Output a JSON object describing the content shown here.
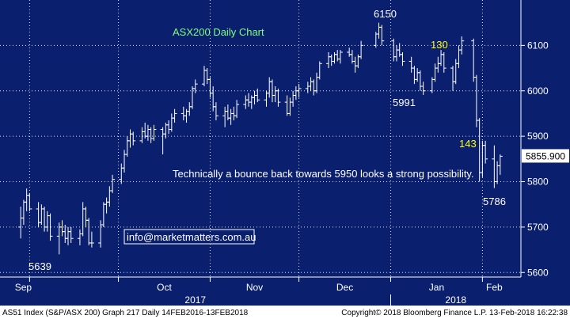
{
  "chart_data": {
    "type": "ohlc",
    "title": "ASX200 Daily Chart",
    "ylim": [
      5590,
      6200
    ],
    "y_ticks": [
      5600,
      5700,
      5800,
      5900,
      6000,
      6100
    ],
    "last_price": 5855.9,
    "last_price_label": "5855.900",
    "months": [
      "Sep",
      "Oct",
      "Nov",
      "Dec",
      "Jan",
      "Feb"
    ],
    "years": [
      "2017",
      "2018"
    ],
    "annotations": [
      {
        "id": "label-6150",
        "text": "6150",
        "color": "#ffffff"
      },
      {
        "id": "label-130",
        "text": "130",
        "color": "#ffff00"
      },
      {
        "id": "label-5991",
        "text": "5991",
        "color": "#ffffff"
      },
      {
        "id": "label-143",
        "text": "143",
        "color": "#ffff00"
      },
      {
        "id": "label-5786",
        "text": "5786",
        "color": "#ffffff"
      },
      {
        "id": "label-5639",
        "text": "5639",
        "color": "#ffffff"
      },
      {
        "id": "comment",
        "text": "Technically a bounce back towards 5950 looks a strong possibility.",
        "color": "#ffffff"
      },
      {
        "id": "email",
        "text": "info@marketmatters.com.au",
        "color": "#ffffff"
      }
    ],
    "bars": [
      {
        "date": "2017-08-29",
        "o": 5700,
        "h": 5745,
        "l": 5675,
        "c": 5720
      },
      {
        "date": "2017-08-30",
        "o": 5720,
        "h": 5760,
        "l": 5705,
        "c": 5755
      },
      {
        "date": "2017-08-31",
        "o": 5755,
        "h": 5785,
        "l": 5735,
        "c": 5770
      },
      {
        "date": "2017-09-01",
        "o": 5770,
        "h": 5775,
        "l": 5735,
        "c": 5740
      },
      {
        "date": "2017-09-04",
        "o": 5740,
        "h": 5755,
        "l": 5700,
        "c": 5710
      },
      {
        "date": "2017-09-05",
        "o": 5710,
        "h": 5750,
        "l": 5705,
        "c": 5740
      },
      {
        "date": "2017-09-06",
        "o": 5740,
        "h": 5745,
        "l": 5690,
        "c": 5700
      },
      {
        "date": "2017-09-07",
        "o": 5700,
        "h": 5735,
        "l": 5690,
        "c": 5725
      },
      {
        "date": "2017-09-08",
        "o": 5725,
        "h": 5730,
        "l": 5670,
        "c": 5680
      },
      {
        "date": "2017-09-11",
        "o": 5680,
        "h": 5710,
        "l": 5640,
        "c": 5700
      },
      {
        "date": "2017-09-12",
        "o": 5700,
        "h": 5715,
        "l": 5680,
        "c": 5690
      },
      {
        "date": "2017-09-13",
        "o": 5690,
        "h": 5705,
        "l": 5665,
        "c": 5675
      },
      {
        "date": "2017-09-14",
        "o": 5675,
        "h": 5700,
        "l": 5660,
        "c": 5690
      },
      {
        "date": "2017-09-15",
        "o": 5690,
        "h": 5700,
        "l": 5665,
        "c": 5675
      },
      {
        "date": "2017-09-18",
        "o": 5675,
        "h": 5695,
        "l": 5660,
        "c": 5685
      },
      {
        "date": "2017-09-19",
        "o": 5685,
        "h": 5755,
        "l": 5680,
        "c": 5740
      },
      {
        "date": "2017-09-20",
        "o": 5740,
        "h": 5745,
        "l": 5700,
        "c": 5715
      },
      {
        "date": "2017-09-21",
        "o": 5715,
        "h": 5720,
        "l": 5660,
        "c": 5665
      },
      {
        "date": "2017-09-22",
        "o": 5665,
        "h": 5690,
        "l": 5655,
        "c": 5665
      },
      {
        "date": "2017-09-25",
        "o": 5665,
        "h": 5715,
        "l": 5655,
        "c": 5705
      },
      {
        "date": "2017-09-26",
        "o": 5705,
        "h": 5755,
        "l": 5700,
        "c": 5750
      },
      {
        "date": "2017-09-27",
        "o": 5750,
        "h": 5765,
        "l": 5730,
        "c": 5755
      },
      {
        "date": "2017-09-28",
        "o": 5755,
        "h": 5790,
        "l": 5745,
        "c": 5780
      },
      {
        "date": "2017-09-29",
        "o": 5780,
        "h": 5815,
        "l": 5775,
        "c": 5805
      },
      {
        "date": "2017-10-02",
        "o": 5805,
        "h": 5840,
        "l": 5795,
        "c": 5830
      },
      {
        "date": "2017-10-03",
        "o": 5830,
        "h": 5870,
        "l": 5820,
        "c": 5860
      },
      {
        "date": "2017-10-04",
        "o": 5860,
        "h": 5900,
        "l": 5855,
        "c": 5890
      },
      {
        "date": "2017-10-05",
        "o": 5890,
        "h": 5915,
        "l": 5875,
        "c": 5905
      },
      {
        "date": "2017-10-06",
        "o": 5905,
        "h": 5910,
        "l": 5880,
        "c": 5890
      },
      {
        "date": "2017-10-09",
        "o": 5890,
        "h": 5920,
        "l": 5885,
        "c": 5910
      },
      {
        "date": "2017-10-10",
        "o": 5910,
        "h": 5930,
        "l": 5895,
        "c": 5900
      },
      {
        "date": "2017-10-11",
        "o": 5900,
        "h": 5925,
        "l": 5890,
        "c": 5915
      },
      {
        "date": "2017-10-12",
        "o": 5915,
        "h": 5920,
        "l": 5885,
        "c": 5895
      },
      {
        "date": "2017-10-13",
        "o": 5895,
        "h": 5925,
        "l": 5890,
        "c": 5915
      },
      {
        "date": "2017-10-16",
        "o": 5915,
        "h": 5920,
        "l": 5860,
        "c": 5905
      },
      {
        "date": "2017-10-17",
        "o": 5905,
        "h": 5930,
        "l": 5895,
        "c": 5925
      },
      {
        "date": "2017-10-18",
        "o": 5925,
        "h": 5935,
        "l": 5905,
        "c": 5915
      },
      {
        "date": "2017-10-19",
        "o": 5915,
        "h": 5950,
        "l": 5910,
        "c": 5940
      },
      {
        "date": "2017-10-20",
        "o": 5940,
        "h": 5960,
        "l": 5930,
        "c": 5950
      },
      {
        "date": "2017-10-23",
        "o": 5950,
        "h": 5965,
        "l": 5935,
        "c": 5945
      },
      {
        "date": "2017-10-24",
        "o": 5945,
        "h": 5960,
        "l": 5930,
        "c": 5955
      },
      {
        "date": "2017-10-25",
        "o": 5955,
        "h": 5975,
        "l": 5945,
        "c": 5965
      },
      {
        "date": "2017-10-26",
        "o": 5965,
        "h": 6010,
        "l": 5960,
        "c": 6005
      },
      {
        "date": "2017-10-27",
        "o": 6005,
        "h": 6025,
        "l": 5995,
        "c": 6015
      },
      {
        "date": "2017-10-30",
        "o": 6015,
        "h": 6055,
        "l": 6010,
        "c": 6045
      },
      {
        "date": "2017-10-31",
        "o": 6045,
        "h": 6050,
        "l": 6015,
        "c": 6025
      },
      {
        "date": "2017-11-01",
        "o": 6025,
        "h": 6030,
        "l": 5985,
        "c": 5995
      },
      {
        "date": "2017-11-02",
        "o": 5995,
        "h": 6010,
        "l": 5955,
        "c": 5965
      },
      {
        "date": "2017-11-03",
        "o": 5965,
        "h": 5975,
        "l": 5935,
        "c": 5945
      },
      {
        "date": "2017-11-06",
        "o": 5945,
        "h": 5965,
        "l": 5920,
        "c": 5955
      },
      {
        "date": "2017-11-07",
        "o": 5955,
        "h": 5970,
        "l": 5935,
        "c": 5940
      },
      {
        "date": "2017-11-08",
        "o": 5940,
        "h": 5960,
        "l": 5925,
        "c": 5950
      },
      {
        "date": "2017-11-09",
        "o": 5950,
        "h": 5965,
        "l": 5935,
        "c": 5945
      },
      {
        "date": "2017-11-10",
        "o": 5945,
        "h": 5980,
        "l": 5940,
        "c": 5970
      },
      {
        "date": "2017-11-13",
        "o": 5970,
        "h": 5990,
        "l": 5960,
        "c": 5980
      },
      {
        "date": "2017-11-14",
        "o": 5980,
        "h": 5995,
        "l": 5965,
        "c": 5975
      },
      {
        "date": "2017-11-15",
        "o": 5975,
        "h": 5990,
        "l": 5960,
        "c": 5985
      },
      {
        "date": "2017-11-16",
        "o": 5985,
        "h": 6000,
        "l": 5970,
        "c": 5990
      },
      {
        "date": "2017-11-17",
        "o": 5990,
        "h": 6005,
        "l": 5975,
        "c": 5980
      },
      {
        "date": "2017-11-20",
        "o": 5980,
        "h": 6000,
        "l": 5965,
        "c": 5995
      },
      {
        "date": "2017-11-21",
        "o": 5995,
        "h": 6030,
        "l": 5985,
        "c": 6020
      },
      {
        "date": "2017-11-22",
        "o": 6020,
        "h": 6025,
        "l": 5975,
        "c": 5990
      },
      {
        "date": "2017-11-23",
        "o": 5990,
        "h": 6010,
        "l": 5975,
        "c": 6000
      },
      {
        "date": "2017-11-24",
        "o": 6000,
        "h": 6005,
        "l": 5965,
        "c": 5975
      },
      {
        "date": "2017-11-27",
        "o": 5975,
        "h": 5990,
        "l": 5945,
        "c": 5950
      },
      {
        "date": "2017-11-28",
        "o": 5950,
        "h": 5985,
        "l": 5945,
        "c": 5975
      },
      {
        "date": "2017-11-29",
        "o": 5975,
        "h": 6000,
        "l": 5965,
        "c": 5990
      },
      {
        "date": "2017-11-30",
        "o": 5990,
        "h": 6010,
        "l": 5980,
        "c": 6000
      },
      {
        "date": "2017-12-01",
        "o": 6000,
        "h": 6015,
        "l": 5985,
        "c": 6005
      },
      {
        "date": "2017-12-04",
        "o": 6005,
        "h": 6020,
        "l": 5995,
        "c": 6010
      },
      {
        "date": "2017-12-05",
        "o": 6010,
        "h": 6030,
        "l": 6000,
        "c": 6020
      },
      {
        "date": "2017-12-06",
        "o": 6020,
        "h": 6025,
        "l": 5990,
        "c": 6000
      },
      {
        "date": "2017-12-07",
        "o": 6000,
        "h": 6040,
        "l": 5995,
        "c": 6030
      },
      {
        "date": "2017-12-08",
        "o": 6030,
        "h": 6065,
        "l": 6025,
        "c": 6060
      },
      {
        "date": "2017-12-11",
        "o": 6060,
        "h": 6085,
        "l": 6050,
        "c": 6075
      },
      {
        "date": "2017-12-12",
        "o": 6075,
        "h": 6080,
        "l": 6055,
        "c": 6065
      },
      {
        "date": "2017-12-13",
        "o": 6065,
        "h": 6085,
        "l": 6060,
        "c": 6080
      },
      {
        "date": "2017-12-14",
        "o": 6080,
        "h": 6090,
        "l": 6065,
        "c": 6070
      },
      {
        "date": "2017-12-15",
        "o": 6070,
        "h": 6090,
        "l": 6060,
        "c": 6085
      },
      {
        "date": "2017-12-18",
        "o": 6085,
        "h": 6095,
        "l": 6075,
        "c": 6080
      },
      {
        "date": "2017-12-19",
        "o": 6080,
        "h": 6090,
        "l": 6060,
        "c": 6065
      },
      {
        "date": "2017-12-20",
        "o": 6065,
        "h": 6075,
        "l": 6040,
        "c": 6055
      },
      {
        "date": "2017-12-21",
        "o": 6055,
        "h": 6080,
        "l": 6050,
        "c": 6075
      },
      {
        "date": "2017-12-22",
        "o": 6075,
        "h": 6110,
        "l": 6070,
        "c": 6100
      },
      {
        "date": "2017-12-27",
        "o": 6100,
        "h": 6130,
        "l": 6095,
        "c": 6125
      },
      {
        "date": "2017-12-28",
        "o": 6125,
        "h": 6150,
        "l": 6115,
        "c": 6140
      },
      {
        "date": "2017-12-29",
        "o": 6140,
        "h": 6145,
        "l": 6100,
        "c": 6110
      },
      {
        "date": "2018-01-02",
        "o": 6110,
        "h": 6115,
        "l": 6065,
        "c": 6075
      },
      {
        "date": "2018-01-03",
        "o": 6075,
        "h": 6100,
        "l": 6065,
        "c": 6090
      },
      {
        "date": "2018-01-04",
        "o": 6090,
        "h": 6105,
        "l": 6075,
        "c": 6080
      },
      {
        "date": "2018-01-05",
        "o": 6080,
        "h": 6085,
        "l": 6055,
        "c": 6065
      },
      {
        "date": "2018-01-08",
        "o": 6065,
        "h": 6075,
        "l": 6040,
        "c": 6050
      },
      {
        "date": "2018-01-09",
        "o": 6050,
        "h": 6055,
        "l": 6015,
        "c": 6025
      },
      {
        "date": "2018-01-10",
        "o": 6025,
        "h": 6050,
        "l": 6020,
        "c": 6040
      },
      {
        "date": "2018-01-11",
        "o": 6040,
        "h": 6045,
        "l": 6000,
        "c": 6010
      },
      {
        "date": "2018-01-12",
        "o": 6010,
        "h": 6020,
        "l": 5991,
        "c": 6000
      },
      {
        "date": "2018-01-15",
        "o": 6000,
        "h": 6030,
        "l": 5995,
        "c": 6025
      },
      {
        "date": "2018-01-16",
        "o": 6025,
        "h": 6060,
        "l": 6020,
        "c": 6050
      },
      {
        "date": "2018-01-17",
        "o": 6050,
        "h": 6075,
        "l": 6040,
        "c": 6060
      },
      {
        "date": "2018-01-18",
        "o": 6060,
        "h": 6090,
        "l": 6055,
        "c": 6080
      },
      {
        "date": "2018-01-19",
        "o": 6080,
        "h": 6085,
        "l": 6040,
        "c": 6050
      },
      {
        "date": "2018-01-22",
        "o": 6050,
        "h": 6055,
        "l": 6000,
        "c": 6020
      },
      {
        "date": "2018-01-23",
        "o": 6020,
        "h": 6070,
        "l": 6015,
        "c": 6060
      },
      {
        "date": "2018-01-24",
        "o": 6060,
        "h": 6100,
        "l": 6050,
        "c": 6090
      },
      {
        "date": "2018-01-25",
        "o": 6090,
        "h": 6120,
        "l": 6080,
        "c": 6110
      },
      {
        "date": "2018-01-29",
        "o": 6110,
        "h": 6115,
        "l": 6020,
        "c": 6030
      },
      {
        "date": "2018-01-30",
        "o": 6030,
        "h": 6035,
        "l": 5920,
        "c": 5935
      },
      {
        "date": "2018-01-31",
        "o": 5935,
        "h": 5940,
        "l": 5800,
        "c": 5820
      },
      {
        "date": "2018-02-01",
        "o": 5820,
        "h": 5890,
        "l": 5810,
        "c": 5880
      },
      {
        "date": "2018-02-02",
        "o": 5880,
        "h": 5890,
        "l": 5840,
        "c": 5850
      },
      {
        "date": "2018-02-05",
        "o": 5850,
        "h": 5880,
        "l": 5786,
        "c": 5800
      },
      {
        "date": "2018-02-06",
        "o": 5800,
        "h": 5845,
        "l": 5795,
        "c": 5835
      },
      {
        "date": "2018-02-07",
        "o": 5835,
        "h": 5860,
        "l": 5815,
        "c": 5855.9
      }
    ]
  },
  "x_axis": {
    "months": [
      "Sep",
      "Oct",
      "Nov",
      "Dec",
      "Jan",
      "Feb"
    ],
    "years": [
      "2017",
      "2018"
    ]
  },
  "footer": {
    "left": "AS51 Index (S&P/ASX 200) Graph 217  Daily 14FEB2016-13FEB2018",
    "right": "Copyright© 2018 Bloomberg Finance L.P.   13-Feb-2018 16:22:38"
  },
  "colors": {
    "background": "#000000",
    "plot_bg": "#0a1f6e",
    "grid": "#ffffff",
    "bar": "#ffffff",
    "title": "#7dff7d",
    "highlight": "#ffff00",
    "footer_bg": "#ffffff"
  }
}
